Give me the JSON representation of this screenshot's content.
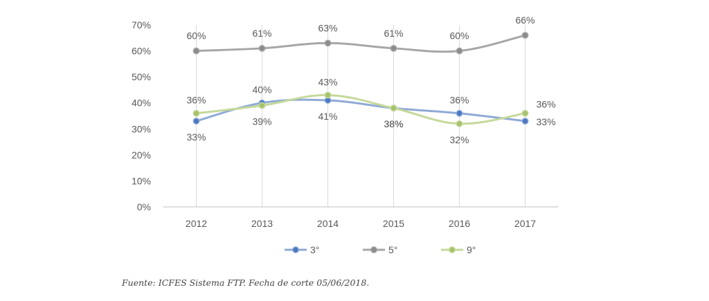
{
  "chart_data": {
    "type": "line",
    "title": "",
    "xlabel": "",
    "ylabel": "",
    "categories": [
      "2012",
      "2013",
      "2014",
      "2015",
      "2016",
      "2017"
    ],
    "ylim": [
      0,
      70
    ],
    "y_ticks": [
      "0%",
      "10%",
      "20%",
      "30%",
      "40%",
      "50%",
      "60%",
      "70%"
    ],
    "grid": "vertical",
    "legend_position": "bottom",
    "smooth": true,
    "series": [
      {
        "name": "3°",
        "color": "#8eaad6",
        "marker_color": "#4a78c2",
        "values": [
          33,
          40,
          41,
          38,
          36,
          33
        ],
        "labels": [
          "33%",
          "40%",
          "41%",
          "38%",
          "36%",
          "33%"
        ]
      },
      {
        "name": "5°",
        "color": "#a6a6a6",
        "marker_color": "#8c8c8c",
        "values": [
          60,
          61,
          63,
          61,
          60,
          66
        ],
        "labels": [
          "60%",
          "61%",
          "63%",
          "61%",
          "60%",
          "66%"
        ]
      },
      {
        "name": "9°",
        "color": "#c5d99b",
        "marker_color": "#a6c26a",
        "values": [
          36,
          39,
          43,
          38,
          32,
          36
        ],
        "labels": [
          "36%",
          "39%",
          "43%",
          "38%",
          "32%",
          "36%"
        ]
      }
    ]
  },
  "caption": "Fuente: ICFES Sistema FTP. Fecha de corte 05/06/2018."
}
